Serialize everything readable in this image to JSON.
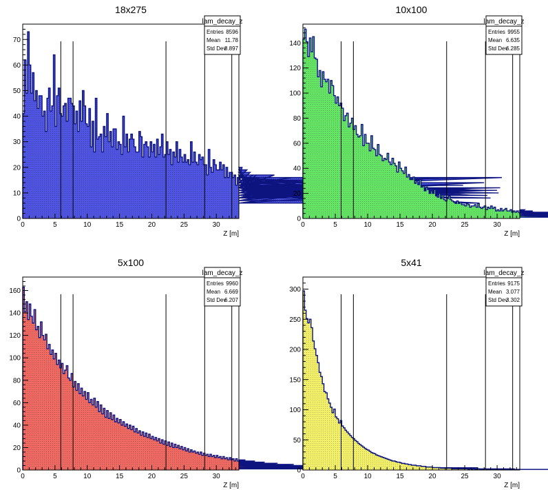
{
  "chart_data": [
    {
      "type": "histogram",
      "title": "18x275",
      "xlabel": "Z [m]",
      "xlim": [
        0,
        33.5
      ],
      "ylim": [
        0,
        76
      ],
      "xticks": [
        0,
        5,
        10,
        15,
        20,
        25,
        30
      ],
      "yticks": [
        0,
        10,
        20,
        30,
        40,
        50,
        60,
        70
      ],
      "fill_color": "#4f55e0",
      "stats": {
        "name": "lam_decay_z",
        "rows": [
          [
            "Entries",
            "8596"
          ],
          [
            "Mean",
            "11.78"
          ],
          [
            "Std Dev",
            "8.897"
          ]
        ]
      },
      "vlines": [
        5.9,
        7.8,
        22.2,
        28.2,
        32.4
      ],
      "bins": {
        "width": 0.25,
        "values": [
          41,
          62,
          49,
          73,
          60,
          49,
          57,
          46,
          50,
          43,
          48,
          48,
          40,
          42,
          34,
          47,
          51,
          42,
          44,
          64,
          36,
          48,
          51,
          41,
          40,
          44,
          45,
          38,
          47,
          47,
          45,
          44,
          37,
          42,
          34,
          46,
          38,
          50,
          44,
          37,
          36,
          43,
          28,
          38,
          26,
          47,
          31,
          32,
          33,
          26,
          36,
          32,
          41,
          30,
          34,
          28,
          35,
          35,
          27,
          30,
          29,
          25,
          40,
          28,
          33,
          26,
          31,
          33,
          31,
          28,
          26,
          26,
          34,
          32,
          24,
          29,
          30,
          28,
          24,
          30,
          26,
          29,
          24,
          31,
          25,
          28,
          33,
          24,
          25,
          30,
          25,
          27,
          21,
          26,
          24,
          30,
          22,
          27,
          24,
          22,
          25,
          22,
          23,
          21,
          30,
          22,
          26,
          22,
          21,
          25,
          23,
          24,
          21,
          21,
          17,
          27,
          20,
          18,
          23,
          21,
          19,
          19,
          22,
          19,
          21,
          16,
          20,
          16,
          18,
          18,
          16,
          17,
          13,
          16,
          17,
          15,
          20,
          14,
          16,
          19,
          14,
          18,
          14,
          17,
          12,
          17,
          13,
          16,
          15,
          14,
          14,
          11,
          12,
          12,
          8,
          12,
          17,
          13,
          13,
          12,
          10,
          15,
          11,
          11,
          13,
          12,
          13,
          16,
          12,
          9,
          14,
          9,
          11,
          13,
          10,
          11,
          8,
          13,
          7,
          12,
          11,
          13,
          12,
          10,
          12,
          9,
          14,
          10,
          11,
          11,
          12,
          12,
          10,
          11,
          13,
          10,
          12,
          11,
          9,
          12,
          11,
          14,
          8,
          12,
          11,
          9,
          10,
          13,
          12,
          11,
          8,
          11,
          9,
          16,
          10,
          12,
          9,
          13,
          9,
          8,
          11,
          12,
          12,
          11,
          13,
          10,
          12,
          9,
          10,
          8,
          12,
          11,
          10,
          11,
          15,
          9,
          14,
          11,
          7,
          13,
          8,
          12,
          11,
          10,
          9,
          13,
          12,
          10,
          13,
          12,
          8,
          10,
          9,
          12,
          6,
          16,
          9,
          11,
          10,
          8,
          11,
          10,
          13,
          9,
          8,
          12,
          16,
          11,
          10,
          9,
          11,
          10,
          12,
          13,
          10,
          9,
          11,
          8,
          14,
          16,
          9,
          10,
          11,
          6,
          12,
          10,
          14,
          11,
          9,
          10,
          8,
          11,
          12,
          10,
          11,
          10,
          12,
          16
        ]
      }
    },
    {
      "type": "histogram",
      "title": "10x100",
      "xlabel": "Z [m]",
      "xlim": [
        0,
        33.5
      ],
      "ylim": [
        0,
        155
      ],
      "xticks": [
        0,
        5,
        10,
        15,
        20,
        25,
        30
      ],
      "yticks": [
        0,
        20,
        40,
        60,
        80,
        100,
        120,
        140
      ],
      "fill_color": "#66e466",
      "stats": {
        "name": "lam_decay_z",
        "rows": [
          [
            "Entries",
            "9955"
          ],
          [
            "Mean",
            "6.635"
          ],
          [
            "Std Dev",
            "6.285"
          ]
        ]
      },
      "vlines": [
        5.9,
        7.8,
        22.2,
        28.2,
        32.4
      ],
      "bins": {
        "width": 0.25,
        "values": [
          143,
          151,
          141,
          129,
          144,
          133,
          145,
          128,
          127,
          113,
          118,
          105,
          117,
          111,
          109,
          111,
          100,
          110,
          106,
          98,
          92,
          97,
          90,
          92,
          88,
          78,
          82,
          84,
          73,
          76,
          80,
          71,
          74,
          67,
          65,
          66,
          75,
          58,
          67,
          60,
          60,
          54,
          66,
          56,
          55,
          50,
          59,
          51,
          50,
          46,
          48,
          47,
          52,
          45,
          43,
          48,
          44,
          42,
          37,
          45,
          40,
          38,
          36,
          41,
          33,
          35,
          31,
          31,
          33,
          28,
          30,
          27,
          31,
          25,
          26,
          22,
          25,
          23,
          20,
          22,
          20,
          23,
          18,
          17,
          20,
          16,
          19,
          15,
          14,
          16,
          18,
          15,
          14,
          13,
          12,
          14,
          12,
          13,
          11,
          11,
          10,
          12,
          11,
          9,
          10,
          10,
          11,
          9,
          12,
          9,
          8,
          9,
          10,
          7,
          9,
          8,
          10,
          8,
          9,
          6,
          7,
          6,
          8,
          6,
          7,
          8,
          6,
          6,
          7,
          5,
          6,
          5,
          6,
          5,
          5,
          6,
          4,
          7,
          5,
          4,
          5,
          4,
          6,
          5,
          4,
          5,
          5,
          4,
          5,
          3,
          4,
          4,
          3,
          5,
          4,
          3,
          4,
          3,
          4,
          5,
          3,
          4,
          3,
          3,
          4,
          3,
          2,
          4,
          3,
          3,
          2,
          4,
          3,
          2,
          3,
          3,
          2,
          4,
          3,
          2,
          3,
          2,
          3,
          2,
          2,
          3,
          2,
          3,
          2,
          2,
          2,
          3,
          2,
          2,
          2,
          2,
          3,
          1,
          2,
          2,
          2,
          1,
          2,
          2,
          1,
          2,
          2,
          1,
          2,
          1,
          2,
          1,
          1,
          2,
          2,
          1,
          2,
          1,
          2,
          1,
          1,
          2,
          1,
          1,
          2,
          1,
          1,
          1,
          2,
          1,
          1,
          1,
          1,
          2,
          1,
          1,
          1,
          1,
          2,
          1,
          1,
          1,
          1,
          1,
          2,
          1,
          1,
          1,
          1,
          1,
          1,
          2,
          1,
          1,
          1,
          1,
          1,
          1,
          1,
          2,
          1,
          1,
          1,
          1,
          1,
          1,
          1,
          1,
          1,
          2,
          1,
          1,
          1,
          1,
          1,
          1,
          1,
          1,
          1,
          1,
          1,
          1,
          1,
          1,
          2,
          1,
          1,
          1,
          1,
          1,
          1,
          1,
          1,
          1,
          1,
          1,
          1,
          1,
          1,
          1,
          1,
          1,
          1,
          1,
          1,
          1
        ]
      }
    },
    {
      "type": "histogram",
      "title": "5x100",
      "xlabel": "Z [m]",
      "xlim": [
        0,
        33.5
      ],
      "ylim": [
        0,
        172
      ],
      "xticks": [
        0,
        5,
        10,
        15,
        20,
        25,
        30
      ],
      "yticks": [
        0,
        20,
        40,
        60,
        80,
        100,
        120,
        140,
        160
      ],
      "fill_color": "#ee6a62",
      "stats": {
        "name": "lam_decay_z",
        "rows": [
          [
            "Entries",
            "9960"
          ],
          [
            "Mean",
            "6.669"
          ],
          [
            "Std Dev",
            "6.207"
          ]
        ]
      },
      "vlines": [
        5.9,
        7.8,
        22.2,
        28.2,
        32.4
      ],
      "bins": {
        "width": 0.25,
        "values": [
          163,
          141,
          150,
          134,
          148,
          137,
          131,
          143,
          125,
          128,
          118,
          132,
          120,
          116,
          121,
          108,
          112,
          103,
          107,
          99,
          104,
          94,
          98,
          91,
          95,
          86,
          89,
          93,
          82,
          80,
          86,
          74,
          79,
          71,
          77,
          68,
          73,
          66,
          70,
          63,
          69,
          60,
          63,
          58,
          64,
          56,
          61,
          52,
          58,
          50,
          55,
          47,
          53,
          46,
          51,
          45,
          49,
          43,
          46,
          42,
          45,
          40,
          43,
          39,
          41,
          37,
          40,
          36,
          39,
          34,
          37,
          33,
          35,
          31,
          34,
          30,
          33,
          29,
          32,
          28,
          30,
          27,
          29,
          26,
          28,
          24,
          27,
          23,
          26,
          22,
          25,
          21,
          24,
          20,
          23,
          20,
          22,
          19,
          21,
          18,
          20,
          17,
          19,
          16,
          18,
          16,
          17,
          15,
          16,
          14,
          16,
          13,
          15,
          13,
          14,
          12,
          14,
          12,
          13,
          11,
          13,
          11,
          12,
          10,
          12,
          10,
          11,
          9,
          11,
          9,
          10,
          8,
          10,
          8,
          9,
          8,
          9,
          7,
          9,
          7,
          8,
          7,
          8,
          6,
          8,
          6,
          7,
          6,
          7,
          5,
          7,
          5,
          6,
          5,
          6,
          5,
          6,
          4,
          6,
          4,
          5,
          4,
          5,
          4,
          5,
          4,
          5,
          3,
          5,
          3,
          4,
          3,
          4,
          3,
          4,
          3,
          4,
          3,
          4,
          3,
          3,
          3,
          3,
          3,
          4,
          3,
          3,
          2,
          3,
          3,
          3,
          2,
          3,
          2,
          3,
          2,
          3,
          2,
          3,
          2,
          3,
          2,
          3,
          2,
          2,
          2,
          3,
          2,
          2,
          2,
          3,
          2,
          2,
          2,
          2,
          2,
          2,
          2,
          2,
          2,
          2,
          2,
          2,
          1,
          2,
          2,
          2,
          1,
          2,
          2,
          2,
          1,
          2,
          1,
          2,
          1,
          2,
          1,
          2,
          1,
          2,
          1,
          2,
          1,
          1,
          2,
          1,
          1,
          2,
          1,
          1,
          2,
          1,
          1,
          1,
          2,
          1,
          1,
          1,
          1,
          2,
          1,
          1,
          1,
          1,
          1,
          2,
          1,
          1,
          1,
          1,
          1,
          1,
          2,
          1,
          1,
          1,
          1,
          1,
          1,
          1,
          1,
          2,
          1,
          1,
          1,
          1,
          1,
          1,
          1,
          1,
          1,
          1,
          1,
          1,
          1,
          1,
          1,
          1,
          1,
          1,
          1,
          1,
          1,
          1,
          1
        ]
      }
    },
    {
      "type": "histogram",
      "title": "5x41",
      "xlabel": "Z [m]",
      "xlim": [
        0,
        33.5
      ],
      "ylim": [
        0,
        320
      ],
      "xticks": [
        0,
        5,
        10,
        15,
        20,
        25,
        30
      ],
      "yticks": [
        0,
        50,
        100,
        150,
        200,
        250,
        300
      ],
      "fill_color": "#f2f06a",
      "stats": {
        "name": "lam_decay_z",
        "rows": [
          [
            "Entries",
            "9175"
          ],
          [
            "Mean",
            "3.077"
          ],
          [
            "Std Dev",
            "3.302"
          ]
        ]
      },
      "vlines": [
        5.9,
        7.8,
        22.2,
        28.2,
        32.4
      ],
      "bins": {
        "width": 0.25,
        "values": [
          297,
          265,
          251,
          244,
          250,
          236,
          214,
          201,
          190,
          178,
          162,
          155,
          143,
          130,
          128,
          118,
          111,
          104,
          95,
          101,
          88,
          85,
          78,
          82,
          73,
          70,
          66,
          63,
          60,
          57,
          54,
          52,
          49,
          47,
          44,
          42,
          40,
          38,
          36,
          34,
          33,
          31,
          29,
          28,
          27,
          25,
          24,
          23,
          22,
          21,
          20,
          19,
          18,
          17,
          16,
          15,
          15,
          14,
          13,
          13,
          12,
          11,
          11,
          10,
          10,
          9,
          9,
          8,
          8,
          8,
          7,
          7,
          7,
          6,
          6,
          6,
          5,
          5,
          5,
          5,
          4,
          4,
          4,
          4,
          4,
          3,
          3,
          3,
          3,
          3,
          3,
          3,
          2,
          2,
          2,
          2,
          2,
          2,
          2,
          2,
          2,
          2,
          1,
          2,
          1,
          2,
          1,
          1,
          2,
          1,
          1,
          1,
          2,
          1,
          1,
          1,
          1,
          1,
          1,
          1,
          1,
          1,
          1,
          1,
          1,
          1,
          1,
          1,
          1,
          1,
          1,
          1,
          1,
          1,
          1,
          1,
          1,
          1,
          1,
          1,
          1,
          1,
          1,
          1,
          1,
          1,
          1,
          1,
          1,
          1,
          1,
          1,
          1,
          1,
          1,
          1,
          1,
          1,
          1,
          1,
          1,
          1,
          1,
          1,
          1,
          1,
          1,
          1,
          1,
          1,
          1,
          1,
          1,
          1,
          1,
          1,
          1,
          1,
          1,
          1,
          1,
          1,
          1,
          1,
          1,
          1,
          1,
          1,
          1,
          1,
          1,
          1,
          1,
          1,
          1,
          1,
          1,
          1,
          1,
          1,
          1,
          1,
          1,
          1,
          1,
          1,
          1,
          1,
          1,
          1,
          1,
          1,
          1,
          1,
          1,
          1,
          1,
          1,
          1,
          1,
          1,
          1,
          1,
          1,
          1,
          1,
          1,
          1,
          1,
          1,
          1,
          1,
          1,
          1,
          1,
          1,
          1,
          1,
          1,
          1,
          1,
          1,
          1,
          1,
          1,
          1,
          1,
          1,
          1,
          1,
          1,
          1,
          1,
          1,
          1,
          1,
          1,
          1,
          1,
          1,
          1,
          1,
          1,
          1,
          1,
          1,
          1,
          1,
          1,
          1,
          1,
          1,
          1,
          1,
          1,
          1,
          1,
          1,
          1,
          1,
          1,
          1,
          1,
          1,
          1,
          1,
          1,
          1,
          1,
          1,
          1,
          1,
          1,
          1,
          1
        ]
      }
    }
  ]
}
